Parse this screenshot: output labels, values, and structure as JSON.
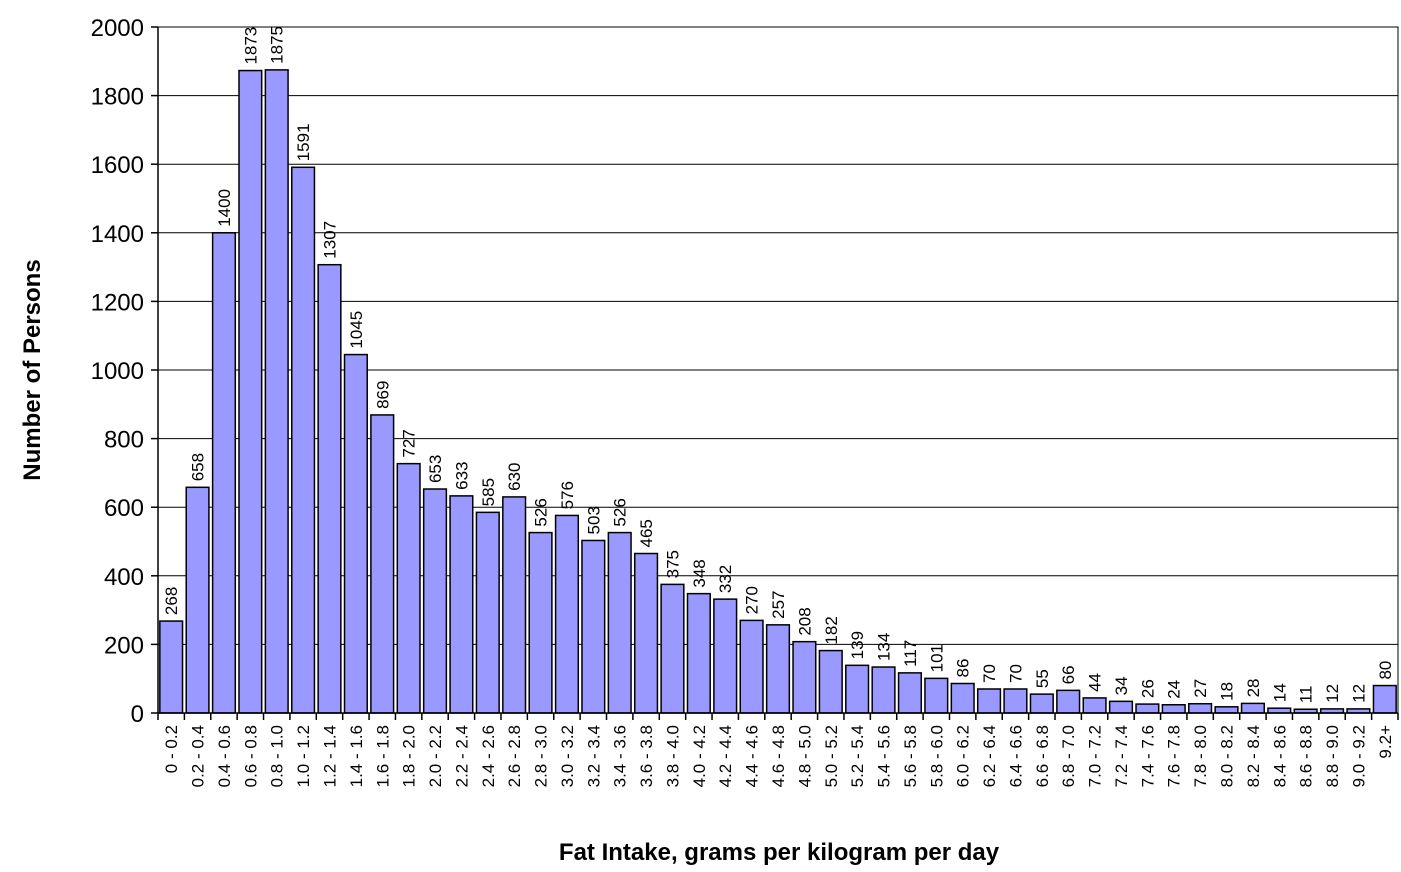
{
  "chart_data": {
    "type": "bar",
    "title": "",
    "xlabel": "Fat Intake, grams per kilogram per day",
    "ylabel": "Number of Persons",
    "ylim": [
      0,
      2000
    ],
    "yticks": [
      0,
      200,
      400,
      600,
      800,
      1000,
      1200,
      1400,
      1600,
      1800,
      2000
    ],
    "grid": "horizontal",
    "legend": "none",
    "bar_color": "#9999ff",
    "categories": [
      "0 - 0.2",
      "0.2 - 0.4",
      "0.4 - 0.6",
      "0.6 - 0.8",
      "0.8 - 1.0",
      "1.0 - 1.2",
      "1.2 - 1.4",
      "1.4 - 1.6",
      "1.6 - 1.8",
      "1.8 - 2.0",
      "2.0 - 2.2",
      "2.2 - 2.4",
      "2.4 - 2.6",
      "2.6 - 2.8",
      "2.8 - 3.0",
      "3.0 - 3.2",
      "3.2 - 3.4",
      "3.4 - 3.6",
      "3.6 - 3.8",
      "3.8 - 4.0",
      "4.0 - 4.2",
      "4.2 - 4.4",
      "4.4 - 4.6",
      "4.6 - 4.8",
      "4.8 - 5.0",
      "5.0 - 5.2",
      "5.2 - 5.4",
      "5.4 - 5.6",
      "5.6 - 5.8",
      "5.8 - 6.0",
      "6.0 - 6.2",
      "6.2 - 6.4",
      "6.4 - 6.6",
      "6.6 - 6.8",
      "6.8 - 7.0",
      "7.0 - 7.2",
      "7.2 - 7.4",
      "7.4 - 7.6",
      "7.6 - 7.8",
      "7.8 - 8.0",
      "8.0 - 8.2",
      "8.2 - 8.4",
      "8.4 - 8.6",
      "8.6 - 8.8",
      "8.8 - 9.0",
      "9.0 - 9.2",
      "9.2+"
    ],
    "values": [
      268,
      658,
      1400,
      1873,
      1875,
      1591,
      1307,
      1045,
      869,
      727,
      653,
      633,
      585,
      630,
      526,
      576,
      503,
      526,
      465,
      375,
      348,
      332,
      270,
      257,
      208,
      182,
      139,
      134,
      117,
      101,
      86,
      70,
      70,
      55,
      66,
      44,
      34,
      26,
      24,
      27,
      18,
      28,
      14,
      11,
      12,
      12,
      80
    ]
  }
}
